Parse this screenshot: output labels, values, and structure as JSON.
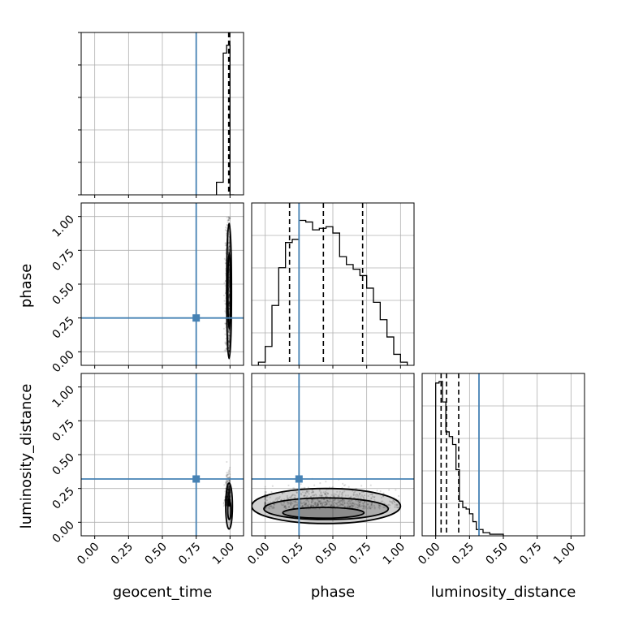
{
  "chart_data": {
    "type": "corner",
    "parameters": [
      "geocent_time",
      "phase",
      "luminosity_distance"
    ],
    "axis_range": [
      -0.1,
      1.1
    ],
    "tick_labels": [
      "0.00",
      "0.25",
      "0.50",
      "0.75",
      "1.00"
    ],
    "grid": true,
    "colors": {
      "truth": "#4682b4",
      "hist": "#000000",
      "grid": "#b0b0b0"
    },
    "truths": {
      "geocent_time": 0.75,
      "phase": 0.25,
      "luminosity_distance": 0.32
    },
    "quantiles": {
      "geocent_time": [
        0.99,
        0.995,
        0.998
      ],
      "phase": [
        0.18,
        0.43,
        0.72
      ],
      "luminosity_distance": [
        0.04,
        0.08,
        0.17
      ]
    },
    "histograms": {
      "geocent_time": {
        "edges": [
          0.9,
          0.95,
          0.975,
          1.0,
          1.03
        ],
        "values": [
          0.08,
          0.9,
          0.95,
          0.0
        ]
      },
      "phase": {
        "edges": [
          -0.05,
          0.0,
          0.05,
          0.1,
          0.15,
          0.2,
          0.25,
          0.3,
          0.35,
          0.4,
          0.45,
          0.5,
          0.55,
          0.6,
          0.65,
          0.7,
          0.75,
          0.8,
          0.85,
          0.9,
          0.95,
          1.0,
          1.05
        ],
        "values": [
          0.02,
          0.12,
          0.38,
          0.62,
          0.78,
          0.8,
          0.92,
          0.91,
          0.86,
          0.87,
          0.88,
          0.84,
          0.69,
          0.64,
          0.61,
          0.57,
          0.49,
          0.4,
          0.29,
          0.18,
          0.07,
          0.02
        ]
      },
      "luminosity_distance": {
        "edges": [
          0.0,
          0.025,
          0.05,
          0.075,
          0.1,
          0.125,
          0.15,
          0.175,
          0.2,
          0.225,
          0.25,
          0.275,
          0.3,
          0.35,
          0.4,
          0.5
        ],
        "values": [
          0.97,
          0.98,
          0.85,
          0.66,
          0.63,
          0.58,
          0.42,
          0.22,
          0.18,
          0.17,
          0.14,
          0.09,
          0.04,
          0.02,
          0.01
        ]
      }
    },
    "panels_2d": [
      {
        "x": "geocent_time",
        "y": "phase",
        "center": [
          0.99,
          0.45
        ],
        "spread": [
          0.012,
          0.3
        ],
        "contours": [
          {
            "cx": 0.993,
            "cy": 0.45,
            "rx": 0.018,
            "ry": 0.5
          },
          {
            "cx": 0.994,
            "cy": 0.45,
            "rx": 0.01,
            "ry": 0.28
          }
        ]
      },
      {
        "x": "geocent_time",
        "y": "luminosity_distance",
        "center": [
          0.99,
          0.12
        ],
        "spread": [
          0.012,
          0.09
        ],
        "contours": [
          {
            "cx": 0.993,
            "cy": 0.12,
            "rx": 0.025,
            "ry": 0.17
          },
          {
            "cx": 0.995,
            "cy": 0.09,
            "rx": 0.012,
            "ry": 0.07
          }
        ]
      },
      {
        "x": "phase",
        "y": "luminosity_distance",
        "center": [
          0.45,
          0.1
        ],
        "spread": [
          0.28,
          0.07
        ],
        "contours": [
          {
            "cx": 0.45,
            "cy": 0.12,
            "rx": 0.55,
            "ry": 0.13
          },
          {
            "cx": 0.45,
            "cy": 0.1,
            "rx": 0.46,
            "ry": 0.08
          },
          {
            "cx": 0.43,
            "cy": 0.07,
            "rx": 0.3,
            "ry": 0.04
          }
        ]
      }
    ]
  }
}
